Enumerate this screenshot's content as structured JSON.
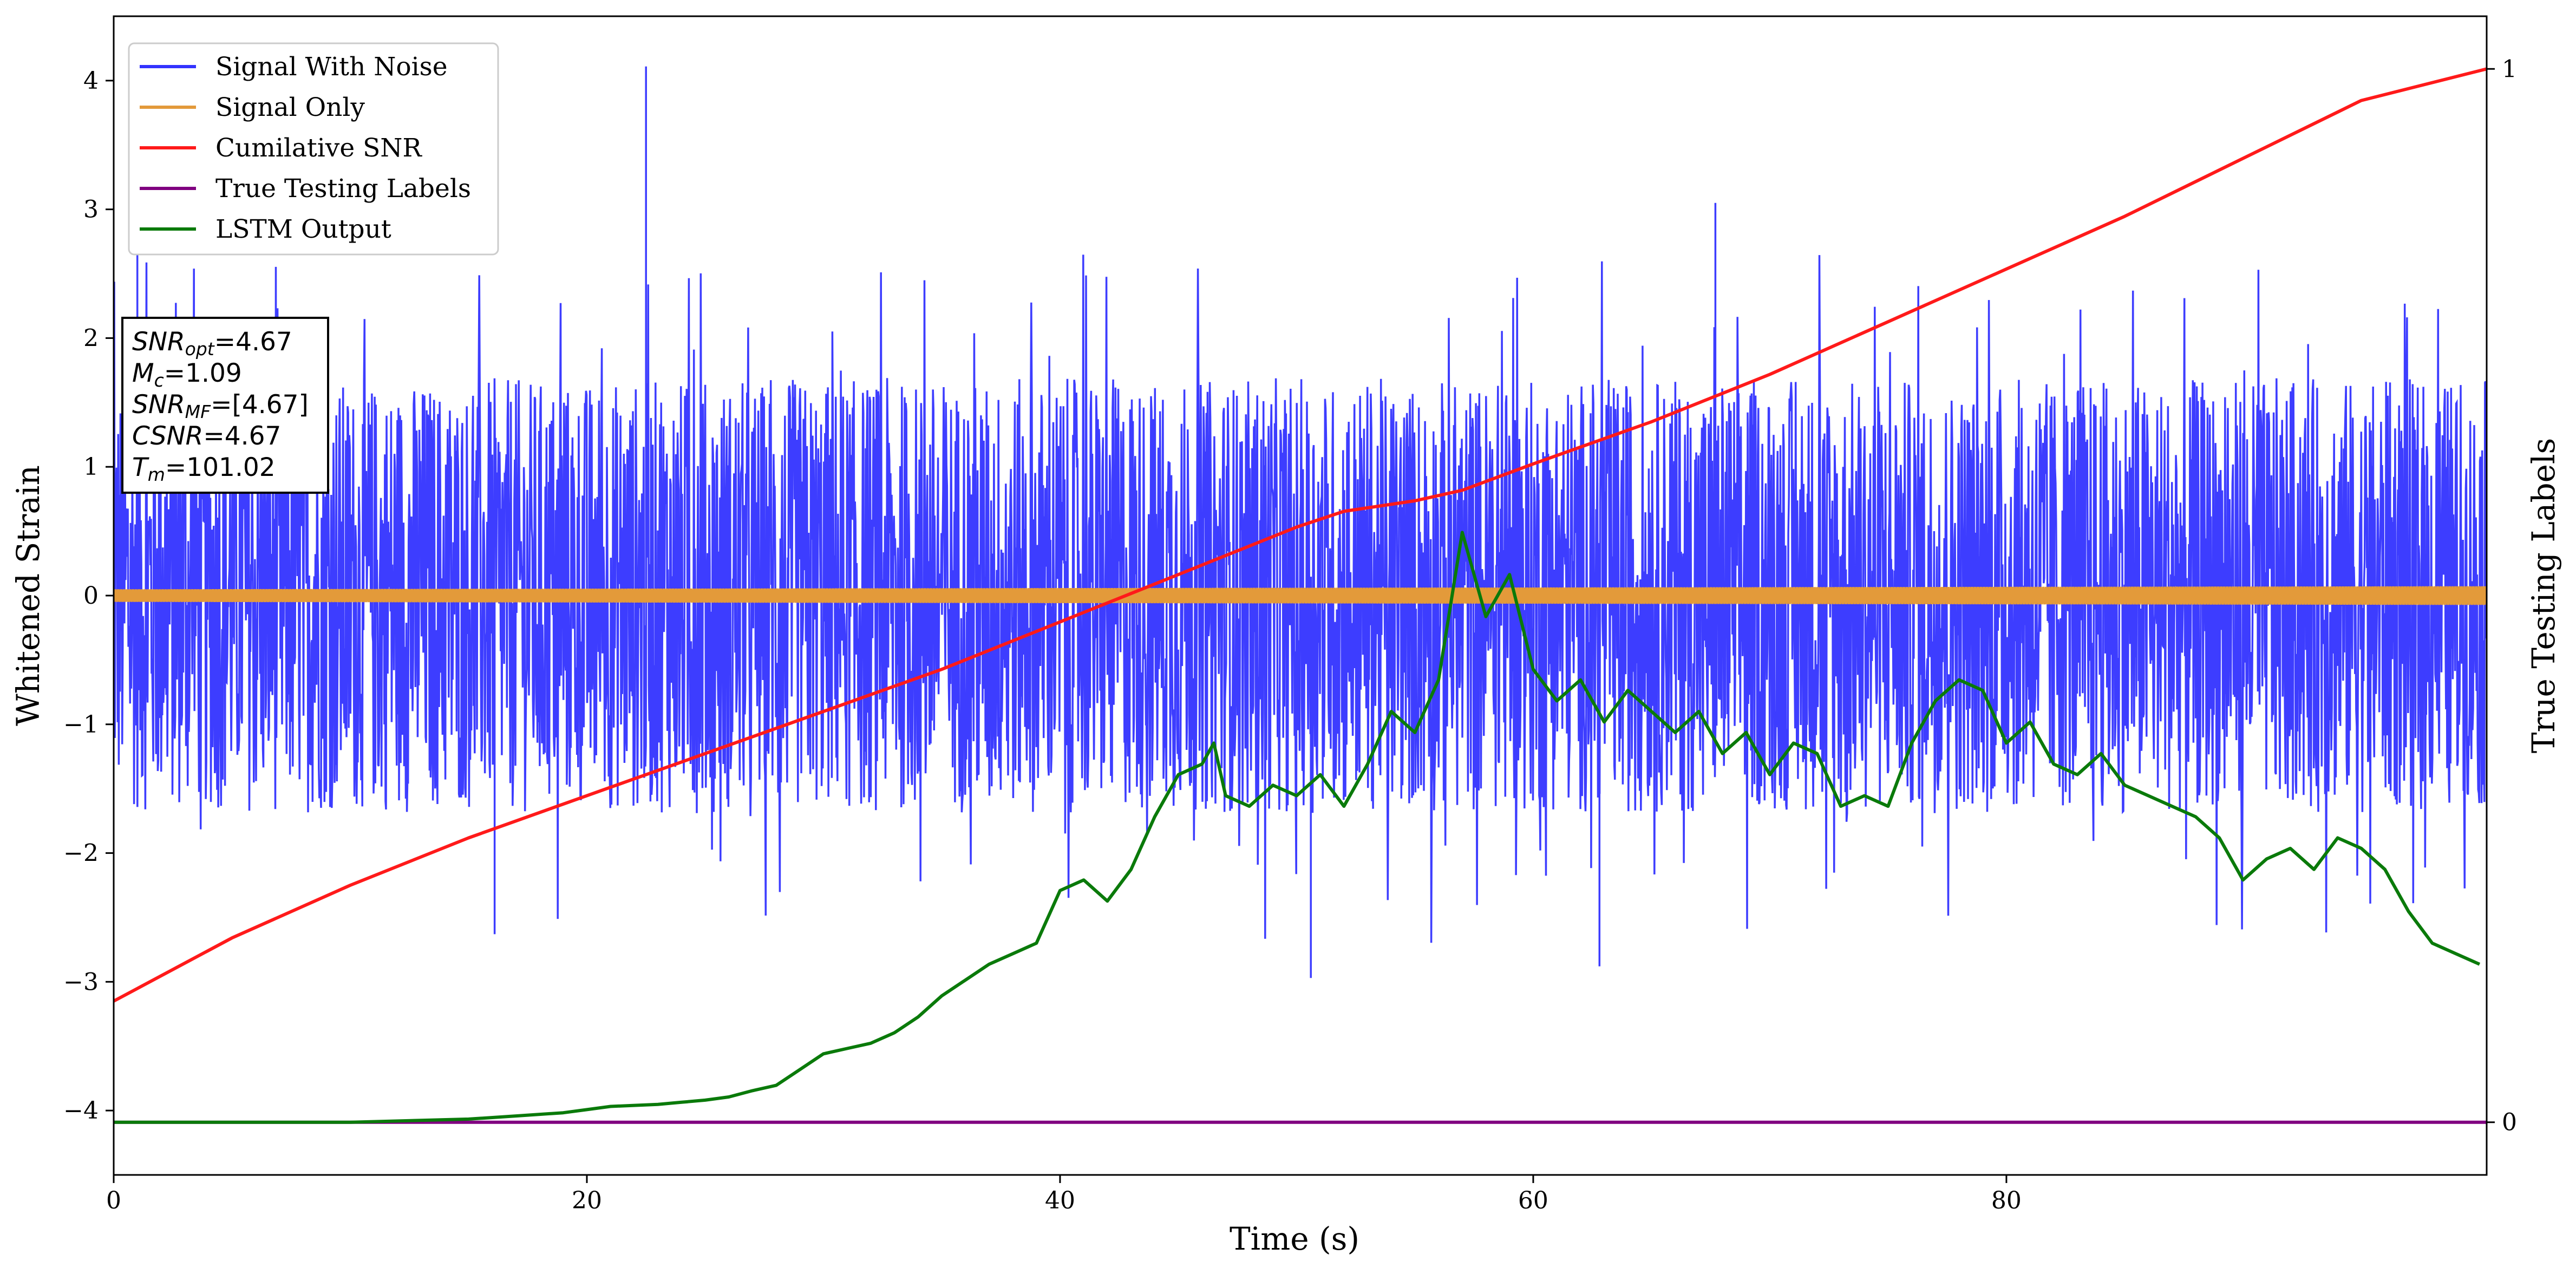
{
  "chart_data": {
    "type": "line",
    "xlabel": "Time (s)",
    "ylabel": "Whitened Strain",
    "y2label": "True Testing Labels",
    "xlim": [
      0,
      100.3
    ],
    "ylim": [
      -4.5,
      4.5
    ],
    "y2lim": [
      -0.05,
      1.05
    ],
    "x_ticks": [
      "0",
      "20",
      "40",
      "60",
      "80"
    ],
    "y_ticks": [
      "−4",
      "−3",
      "−2",
      "−1",
      "0",
      "1",
      "2",
      "3",
      "4"
    ],
    "y2_ticks": [
      "0",
      "1"
    ],
    "legend_placement": "top-left",
    "grid": false,
    "series": [
      {
        "name": "Signal With Noise",
        "color": "#3333ff",
        "axis": "left",
        "approx_amplitude": 1.3,
        "peak_max": 4.11,
        "peak_min": -2.97
      },
      {
        "name": "Signal Only",
        "color": "#e39a3a",
        "axis": "left",
        "approx_amplitude": 0.06
      },
      {
        "name": "Cumilative SNR",
        "color": "#ff1a1a",
        "axis": "right",
        "x": [
          0,
          5,
          10,
          15,
          20,
          25,
          30,
          35,
          40,
          45,
          50,
          52,
          55,
          57,
          60,
          65,
          70,
          75,
          80,
          85,
          90,
          95,
          100.3
        ],
        "y": [
          0.115,
          0.175,
          0.225,
          0.27,
          0.31,
          0.35,
          0.39,
          0.43,
          0.475,
          0.52,
          0.565,
          0.58,
          0.59,
          0.6,
          0.625,
          0.665,
          0.71,
          0.76,
          0.81,
          0.86,
          0.915,
          0.97,
          1.0
        ]
      },
      {
        "name": "True Testing Labels",
        "color": "#800080",
        "axis": "right",
        "x": [
          0,
          100.3
        ],
        "y": [
          0,
          0
        ]
      },
      {
        "name": "LSTM Output",
        "color": "#0a7a0a",
        "axis": "right",
        "x": [
          0,
          10,
          15,
          17,
          19,
          20,
          21,
          22,
          23,
          24,
          25,
          26,
          27,
          28,
          29,
          30,
          31,
          32,
          33,
          34,
          35,
          36,
          37,
          38,
          39,
          40,
          41,
          42,
          43,
          44,
          45,
          46,
          46.5,
          47,
          48,
          49,
          50,
          51,
          52,
          53,
          54,
          55,
          56,
          57,
          58,
          59,
          60,
          61,
          62,
          63,
          64,
          65,
          66,
          67,
          68,
          69,
          70,
          71,
          72,
          73,
          74,
          75,
          76,
          77,
          78,
          79,
          80,
          81,
          82,
          83,
          84,
          85,
          86,
          87,
          88,
          89,
          90,
          91,
          92,
          93,
          94,
          95,
          96,
          97,
          98,
          99,
          100
        ],
        "y": [
          0,
          0,
          0.003,
          0.006,
          0.009,
          0.012,
          0.015,
          0.016,
          0.017,
          0.019,
          0.021,
          0.024,
          0.03,
          0.035,
          0.05,
          0.065,
          0.07,
          0.075,
          0.085,
          0.1,
          0.12,
          0.135,
          0.15,
          0.16,
          0.17,
          0.22,
          0.23,
          0.21,
          0.24,
          0.29,
          0.33,
          0.34,
          0.36,
          0.31,
          0.3,
          0.32,
          0.31,
          0.33,
          0.3,
          0.34,
          0.39,
          0.37,
          0.42,
          0.56,
          0.48,
          0.52,
          0.43,
          0.4,
          0.42,
          0.38,
          0.41,
          0.39,
          0.37,
          0.39,
          0.35,
          0.37,
          0.33,
          0.36,
          0.35,
          0.3,
          0.31,
          0.3,
          0.36,
          0.4,
          0.42,
          0.41,
          0.36,
          0.38,
          0.34,
          0.33,
          0.35,
          0.32,
          0.31,
          0.3,
          0.29,
          0.27,
          0.23,
          0.25,
          0.26,
          0.24,
          0.27,
          0.26,
          0.24,
          0.2,
          0.17,
          0.16,
          0.15
        ]
      }
    ],
    "annotation_lines": [
      {
        "name": "SNR",
        "sub": "opt",
        "value": "=4.67"
      },
      {
        "name": "M",
        "sub": "c",
        "value": "=1.09"
      },
      {
        "name": "SNR",
        "sub": "MF",
        "value": "=[4.67]"
      },
      {
        "name": "CSNR",
        "sub": "",
        "value": "=4.67"
      },
      {
        "name": "T",
        "sub": "m",
        "value": "=101.02"
      }
    ]
  }
}
